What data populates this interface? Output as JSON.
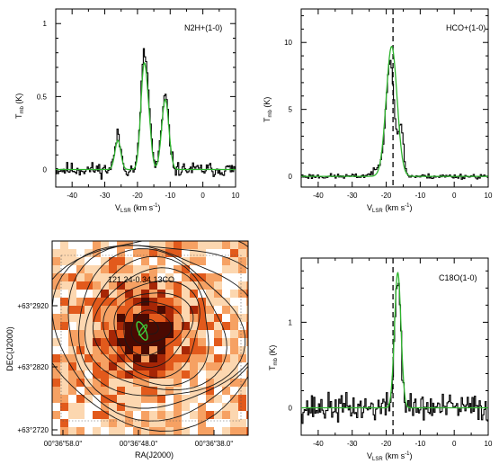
{
  "chart_data": [
    {
      "type": "line",
      "panel": "N2H+ spectrum",
      "label": "N2H+(1-0)",
      "xlabel_main": "V",
      "xlabel_sub": "LSR",
      "xlabel_unit": " (km s",
      "xlabel_exp": "-1",
      "xlabel_close": ")",
      "ylabel_main": "T",
      "ylabel_sub": "mb",
      "ylabel_unit": " (K)",
      "xlim": [
        -45,
        10
      ],
      "ylim": [
        -0.12,
        1.1
      ],
      "xticks": [
        -40,
        -30,
        -20,
        -10,
        0,
        10
      ],
      "yticks": [
        0,
        0.5,
        1
      ],
      "xtick_labels": [
        "-40",
        "-30",
        "-20",
        "-10",
        "0",
        "10"
      ],
      "ytick_labels": [
        "0",
        "0.5",
        "1"
      ],
      "grid": false,
      "series": [
        {
          "color": "#000000",
          "seed": 11,
          "noise": 0.03,
          "components": [
            [
              -26,
              0.23,
              0.9
            ],
            [
              -18,
              0.76,
              1.0
            ],
            [
              -16.4,
              0.25,
              0.8
            ],
            [
              -11.5,
              0.5,
              1.1
            ]
          ]
        },
        {
          "color": "#2fb52f",
          "seed": 0,
          "noise": 0,
          "components": [
            [
              -26,
              0.2,
              0.9
            ],
            [
              -18,
              0.7,
              1.0
            ],
            [
              -16.4,
              0.2,
              0.8
            ],
            [
              -11.5,
              0.48,
              1.1
            ]
          ]
        }
      ]
    },
    {
      "type": "line",
      "panel": "HCO+ spectrum",
      "label": "HCO+(1-0)",
      "xlabel_main": "V",
      "xlabel_sub": "LSR",
      "xlabel_unit": " (km s",
      "xlabel_exp": "-1",
      "xlabel_close": ")",
      "ylabel_main": "T",
      "ylabel_sub": "mb",
      "ylabel_unit": " (K)",
      "xlim": [
        -45,
        10
      ],
      "ylim": [
        -0.8,
        12.5
      ],
      "xticks": [
        -40,
        -30,
        -20,
        -10,
        0,
        10
      ],
      "yticks": [
        0,
        5,
        10
      ],
      "xtick_labels": [
        "-40",
        "-30",
        "-20",
        "-10",
        "0",
        "10"
      ],
      "ytick_labels": [
        "0",
        "5",
        "10"
      ],
      "dashed_x": -18,
      "grid": false,
      "series": [
        {
          "color": "#000000",
          "seed": 23,
          "noise": 0.12,
          "components": [
            [
              -18.8,
              8.0,
              1.2
            ],
            [
              -15.6,
              3.6,
              0.7
            ],
            [
              -20.5,
              0.8,
              2.5
            ]
          ]
        },
        {
          "color": "#2fb52f",
          "seed": 0,
          "noise": 0,
          "components": [
            [
              -18.4,
              9.7,
              1.6
            ]
          ]
        }
      ]
    },
    {
      "type": "heatmap",
      "panel": "map",
      "title": "121.24-0.34  13CO",
      "xlabel": "RA(J2000)",
      "ylabel": "DEC(J2000)",
      "xtick_labels": [
        "00°36′′58.0ʺ",
        "00°36′′48.0ʺ",
        "00°36′′38.0ʺ"
      ],
      "ytick_labels": [
        "+63°2920",
        "+63°2820",
        "+63°2720"
      ],
      "colormap": [
        "#ffffff",
        "#fcd7b0",
        "#f6a163",
        "#e25a1c",
        "#a62606",
        "#4a0a02"
      ],
      "contour_levels": 11,
      "grid": false
    },
    {
      "type": "line",
      "panel": "C18O spectrum",
      "label": "C18O(1-0)",
      "xlabel_main": "V",
      "xlabel_sub": "LSR",
      "xlabel_unit": " (km s",
      "xlabel_exp": "-1",
      "xlabel_close": ")",
      "ylabel_main": "T",
      "ylabel_sub": "mb",
      "ylabel_unit": " (K)",
      "xlim": [
        -45,
        10
      ],
      "ylim": [
        -0.32,
        1.75
      ],
      "xticks": [
        -40,
        -30,
        -20,
        -10,
        0,
        10
      ],
      "yticks": [
        0,
        1
      ],
      "xtick_labels": [
        "-40",
        "-30",
        "-20",
        "-10",
        "0",
        "10"
      ],
      "ytick_labels": [
        "0",
        "1"
      ],
      "dashed_x": -18,
      "grid": false,
      "series": [
        {
          "color": "#000000",
          "seed": 37,
          "noise": 0.1,
          "components": [
            [
              -16.6,
              1.52,
              0.9
            ]
          ]
        },
        {
          "color": "#2fb52f",
          "seed": 0,
          "noise": 0,
          "components": [
            [
              -16.6,
              1.58,
              0.95
            ]
          ]
        }
      ]
    }
  ]
}
